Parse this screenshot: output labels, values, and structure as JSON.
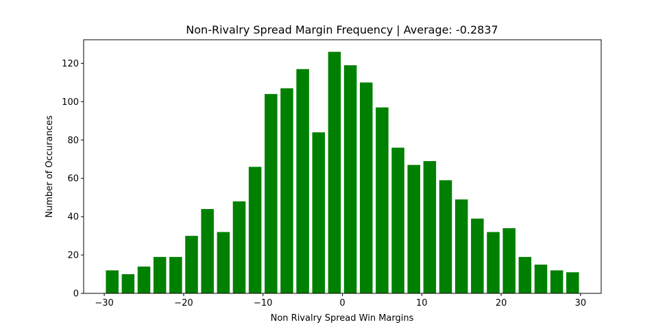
{
  "chart_data": {
    "type": "bar",
    "title": "Non-Rivalry Spread Margin Frequency | Average: -0.2837",
    "xlabel": "Non Rivalry Spread Win Margins",
    "ylabel": "Number of Occurances",
    "x": [
      -29,
      -27,
      -25,
      -23,
      -21,
      -19,
      -17,
      -15,
      -13,
      -11,
      -9,
      -7,
      -5,
      -3,
      -1,
      1,
      3,
      5,
      7,
      9,
      11,
      13,
      15,
      17,
      19,
      21,
      23,
      25,
      27,
      29
    ],
    "values": [
      12,
      10,
      14,
      19,
      19,
      30,
      44,
      32,
      48,
      66,
      104,
      107,
      117,
      84,
      126,
      119,
      110,
      97,
      76,
      67,
      69,
      59,
      49,
      39,
      32,
      34,
      19,
      15,
      12,
      11
    ],
    "bar_width": 1.6,
    "xlim": [
      -32.6,
      32.6
    ],
    "ylim": [
      0,
      132.3
    ],
    "xticks": [
      -30,
      -20,
      -10,
      0,
      10,
      20,
      30
    ],
    "xtick_labels": [
      "−30",
      "−20",
      "−10",
      "0",
      "10",
      "20",
      "30"
    ],
    "yticks": [
      0,
      20,
      40,
      60,
      80,
      100,
      120
    ],
    "ytick_labels": [
      "0",
      "20",
      "40",
      "60",
      "80",
      "100",
      "120"
    ],
    "bar_color": "#008000",
    "grid": false,
    "legend": "none"
  }
}
